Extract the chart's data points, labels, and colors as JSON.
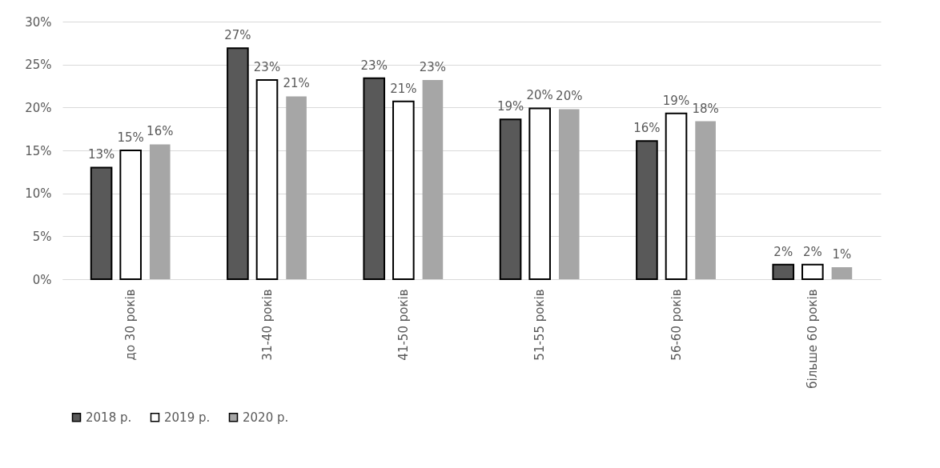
{
  "chart_data": {
    "type": "bar",
    "categories": [
      "до 30 років",
      "31-40 років",
      "41-50 років",
      "51-55 років",
      "56-60 років",
      "більше 60 років"
    ],
    "series": [
      {
        "name": "2018 р.",
        "color": "#595959",
        "values": [
          13.0,
          26.9,
          23.4,
          18.6,
          16.1,
          1.7
        ],
        "value_labels": [
          "13%",
          "27%",
          "23%",
          "19%",
          "16%",
          "2%"
        ]
      },
      {
        "name": "2019 р.",
        "color": "#ffffff",
        "values": [
          15.0,
          23.2,
          20.7,
          19.9,
          19.3,
          1.7
        ],
        "value_labels": [
          "15%",
          "23%",
          "21%",
          "20%",
          "19%",
          "2%"
        ]
      },
      {
        "name": "2020 р.",
        "color": "#a6a6a6",
        "values": [
          15.7,
          21.3,
          23.2,
          19.8,
          18.4,
          1.4
        ],
        "value_labels": [
          "16%",
          "21%",
          "23%",
          "20%",
          "18%",
          "1%"
        ]
      }
    ],
    "ylim": [
      0,
      30
    ],
    "yticks": [
      {
        "value": 0,
        "label": "0%"
      },
      {
        "value": 5,
        "label": "5%"
      },
      {
        "value": 10,
        "label": "10%"
      },
      {
        "value": 15,
        "label": "15%"
      },
      {
        "value": 20,
        "label": "20%"
      },
      {
        "value": 25,
        "label": "25%"
      },
      {
        "value": 30,
        "label": "30%"
      }
    ],
    "grid": "y",
    "legend": "bottom"
  }
}
